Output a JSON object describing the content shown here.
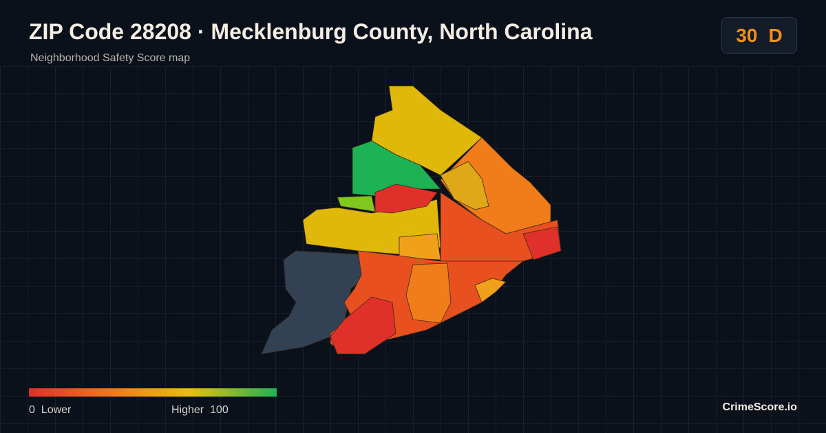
{
  "header": {
    "title": "ZIP Code 28208 · Mecklenburg County, North Carolina",
    "subtitle": "Neighborhood Safety Score map"
  },
  "score": {
    "value": 30,
    "grade": "D"
  },
  "legend": {
    "min": 0,
    "min_label": "Lower",
    "max_label": "Higher",
    "max": 100
  },
  "footer": {
    "brand": "CrimeScore.io"
  }
}
